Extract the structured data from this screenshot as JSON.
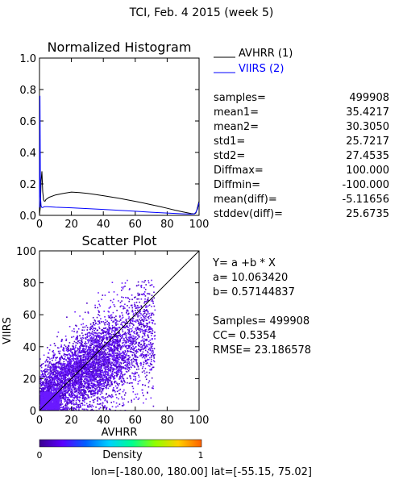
{
  "title": "TCI,  Feb. 4 2015 (week 5)",
  "colors": {
    "series_avhrr": "#000000",
    "series_viirs": "#0000ff",
    "axis": "#000000",
    "scatter_density_low": "#4a00c8",
    "scatter_density_high": "#6a1aff"
  },
  "histogram": {
    "title": "Normalized Histogram",
    "legend": [
      {
        "label": "AVHRR (1)",
        "color": "#000000"
      },
      {
        "label": "VIIRS (2)",
        "color": "#0000ff"
      }
    ],
    "stats": [
      {
        "name": "samples=",
        "value": "499908"
      },
      {
        "name": "mean1=",
        "value": "35.4217"
      },
      {
        "name": "mean2=",
        "value": "30.3050"
      },
      {
        "name": "std1=",
        "value": "25.7217"
      },
      {
        "name": "std2=",
        "value": "27.4535"
      },
      {
        "name": "Diffmax=",
        "value": "100.000"
      },
      {
        "name": "Diffmin=",
        "value": "-100.000"
      },
      {
        "name": "mean(diff)=",
        "value": "-5.11656"
      },
      {
        "name": "stddev(diff)=",
        "value": "25.6735"
      }
    ]
  },
  "scatter": {
    "title": "Scatter Plot",
    "regression_lines": [
      "Y= a +b * X",
      "a= 10.063420",
      "b= 0.57144837"
    ],
    "fit_lines": [
      "Samples= 499908",
      "CC=  0.5354",
      "RMSE= 23.186578"
    ]
  },
  "colorbar": {
    "label": "Density",
    "min_label": "0",
    "max_label": "1",
    "colors": [
      "#3a0090",
      "#5a00ff",
      "#0060ff",
      "#00d0ff",
      "#00ff90",
      "#90ff00",
      "#ffd000",
      "#ff6000"
    ]
  },
  "footer": "lon=[-180.00, 180.00] lat=[-55.15, 75.02]",
  "chart_data": [
    {
      "type": "line",
      "title": "Normalized Histogram",
      "xlabel": "",
      "ylabel": "",
      "xlim": [
        0,
        100
      ],
      "ylim": [
        0,
        1.0
      ],
      "x_ticks": [
        "0",
        "20",
        "40",
        "60",
        "80",
        "100"
      ],
      "y_ticks": [
        "0.0",
        "0.2",
        "0.4",
        "0.6",
        "0.8",
        "1.0"
      ],
      "grid": false,
      "legend_position": "top-right",
      "series": [
        {
          "name": "AVHRR (1)",
          "color": "#000000",
          "x": [
            0,
            0.5,
            1,
            1.5,
            2,
            2.5,
            3,
            3.5,
            4,
            6,
            10,
            15,
            20,
            25,
            30,
            35,
            40,
            45,
            50,
            55,
            60,
            65,
            70,
            75,
            80,
            85,
            90,
            95,
            97,
            98,
            98.5,
            99,
            99.5,
            100
          ],
          "y": [
            0.0,
            0.05,
            0.22,
            0.28,
            0.15,
            0.1,
            0.09,
            0.09,
            0.1,
            0.115,
            0.13,
            0.14,
            0.148,
            0.145,
            0.14,
            0.133,
            0.125,
            0.117,
            0.108,
            0.099,
            0.089,
            0.079,
            0.068,
            0.057,
            0.045,
            0.033,
            0.022,
            0.012,
            0.01,
            0.015,
            0.03,
            0.05,
            0.07,
            0.09
          ]
        },
        {
          "name": "VIIRS (2)",
          "color": "#0000ff",
          "x": [
            0,
            0.3,
            0.6,
            1,
            1.5,
            2,
            3,
            5,
            10,
            20,
            30,
            40,
            50,
            60,
            70,
            80,
            90,
            95,
            97,
            98,
            99,
            99.5,
            100
          ],
          "y": [
            0.05,
            0.76,
            0.12,
            0.06,
            0.05,
            0.05,
            0.055,
            0.055,
            0.052,
            0.048,
            0.043,
            0.038,
            0.032,
            0.026,
            0.02,
            0.015,
            0.01,
            0.008,
            0.01,
            0.02,
            0.04,
            0.06,
            0.08
          ]
        }
      ]
    },
    {
      "type": "scatter",
      "title": "Scatter Plot",
      "xlabel": "AVHRR",
      "ylabel": "VIIRS",
      "xlim": [
        0,
        100
      ],
      "ylim": [
        0,
        100
      ],
      "x_ticks": [
        "0",
        "20",
        "40",
        "60",
        "80",
        "100"
      ],
      "y_ticks": [
        "0",
        "20",
        "40",
        "60",
        "80",
        "100"
      ],
      "grid": false,
      "one_to_one_line": true,
      "samples": 499908,
      "regression": {
        "a": 10.06342,
        "b": 0.57144837
      }
    }
  ]
}
